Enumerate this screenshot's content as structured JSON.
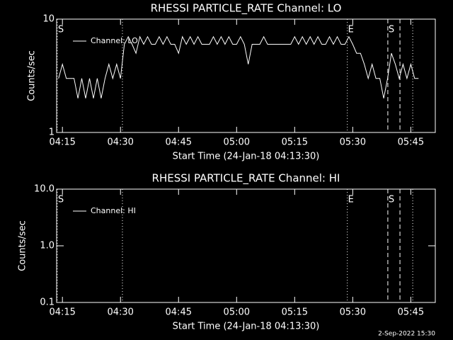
{
  "chart_data": [
    {
      "type": "line",
      "title": "RHESSI PARTICLE_RATE Channel: LO",
      "xlabel": "Start Time (24-Jan-18 04:13:30)",
      "ylabel": "Counts/sec",
      "xlim": [
        "04:13:30",
        "05:51:20"
      ],
      "xticks": [
        "04:15",
        "04:30",
        "04:45",
        "05:00",
        "05:15",
        "05:30",
        "05:45"
      ],
      "ylim": [
        1,
        10
      ],
      "yticks": [
        1,
        10
      ],
      "log_y": true,
      "legend": "upper left",
      "x": [
        "04:14",
        "04:15",
        "04:16",
        "04:17",
        "04:18",
        "04:19",
        "04:20",
        "04:21",
        "04:22",
        "04:23",
        "04:24",
        "04:25",
        "04:26",
        "04:27",
        "04:28",
        "04:29",
        "04:30",
        "04:31",
        "04:32",
        "04:33",
        "04:34",
        "04:35",
        "04:36",
        "04:37",
        "04:38",
        "04:39",
        "04:40",
        "04:41",
        "04:42",
        "04:43",
        "04:44",
        "04:45",
        "04:46",
        "04:47",
        "04:48",
        "04:49",
        "04:50",
        "04:51",
        "04:52",
        "04:53",
        "04:54",
        "04:55",
        "04:56",
        "04:57",
        "04:58",
        "04:59",
        "05:00",
        "05:01",
        "05:02",
        "05:03",
        "05:04",
        "05:05",
        "05:06",
        "05:07",
        "05:08",
        "05:09",
        "05:10",
        "05:11",
        "05:12",
        "05:13",
        "05:14",
        "05:15",
        "05:16",
        "05:17",
        "05:18",
        "05:19",
        "05:20",
        "05:21",
        "05:22",
        "05:23",
        "05:24",
        "05:25",
        "05:26",
        "05:27",
        "05:28",
        "05:29",
        "05:30",
        "05:31",
        "05:32",
        "05:33",
        "05:34",
        "05:35",
        "05:36",
        "05:37",
        "05:38",
        "05:39",
        "05:40",
        "05:41",
        "05:42",
        "05:43",
        "05:44",
        "05:45",
        "05:46",
        "05:47"
      ],
      "series": [
        {
          "name": "Channel: LO",
          "color": "#ffffff",
          "values": [
            3,
            4,
            3,
            3,
            3,
            2,
            3,
            2,
            3,
            2,
            3,
            2,
            3,
            4,
            3,
            4,
            3,
            6,
            7,
            6,
            5,
            7,
            6,
            7,
            6,
            6,
            7,
            6,
            7,
            6,
            6,
            5,
            7,
            6,
            7,
            6,
            7,
            6,
            6,
            6,
            7,
            6,
            7,
            6,
            7,
            6,
            6,
            7,
            6,
            4,
            6,
            6,
            6,
            7,
            6,
            6,
            6,
            6,
            6,
            6,
            6,
            7,
            6,
            7,
            6,
            7,
            6,
            7,
            6,
            6,
            7,
            6,
            7,
            6,
            6,
            7,
            6,
            5,
            5,
            4,
            3,
            4,
            3,
            3,
            2,
            3,
            5,
            4,
            3,
            4,
            3,
            4,
            3,
            3
          ]
        }
      ],
      "markers": [
        {
          "time": "04:13:40",
          "style": "dotted",
          "label": "S"
        },
        {
          "time": "04:30:30",
          "style": "dotted"
        },
        {
          "time": "05:28:36",
          "style": "dotted",
          "label": "E"
        },
        {
          "time": "05:39:04",
          "style": "dashed",
          "label": "S"
        },
        {
          "time": "05:42:12",
          "style": "dashed"
        },
        {
          "time": "05:45:30",
          "style": "dotted"
        }
      ]
    },
    {
      "type": "line",
      "title": "RHESSI PARTICLE_RATE Channel: HI",
      "xlabel": "Start Time (24-Jan-18 04:13:30)",
      "ylabel": "Counts/sec",
      "xlim": [
        "04:13:30",
        "05:51:20"
      ],
      "xticks": [
        "04:15",
        "04:30",
        "04:45",
        "05:00",
        "05:15",
        "05:30",
        "05:45"
      ],
      "ylim": [
        0.1,
        10
      ],
      "yticks": [
        0.1,
        {
          "value": 1,
          "label": "1.0"
        },
        {
          "value": 10,
          "label": "10.0"
        }
      ],
      "log_y": true,
      "legend": "upper left",
      "x": [],
      "series": [
        {
          "name": "Channel: HI",
          "color": "#ffffff",
          "values": []
        }
      ],
      "markers": [
        {
          "time": "04:13:40",
          "style": "dotted",
          "label": "S"
        },
        {
          "time": "04:30:30",
          "style": "dotted"
        },
        {
          "time": "05:28:36",
          "style": "dotted",
          "label": "E"
        },
        {
          "time": "05:39:04",
          "style": "dashed",
          "label": "S"
        },
        {
          "time": "05:42:12",
          "style": "dashed"
        },
        {
          "time": "05:45:30",
          "style": "dotted"
        }
      ]
    }
  ],
  "footer": "2-Sep-2022 15:30"
}
